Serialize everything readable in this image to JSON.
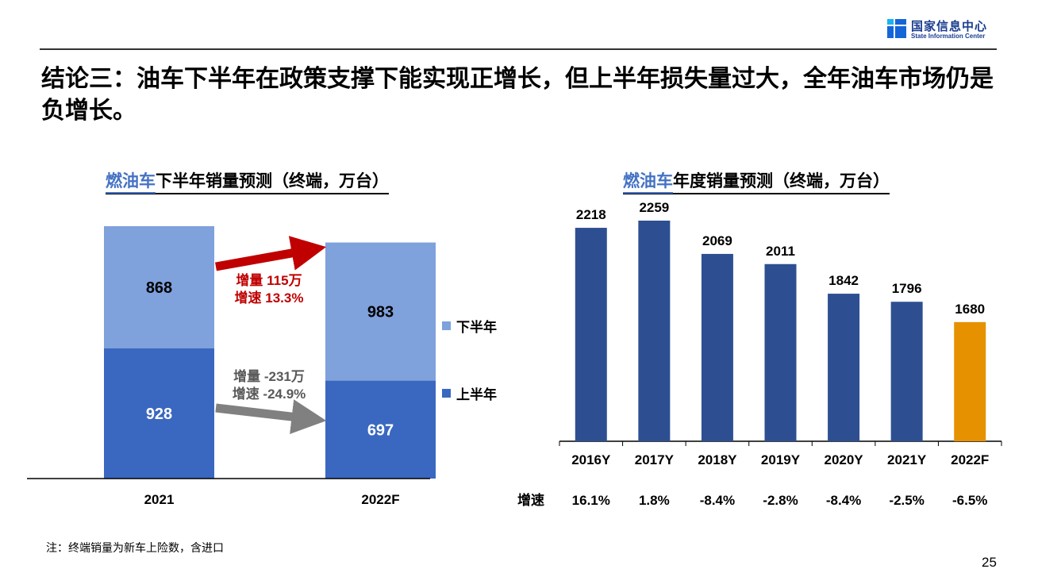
{
  "logo": {
    "cn": "国家信息中心",
    "en": "State Information Center",
    "icon": "state-information-center-logo-icon"
  },
  "headline": "结论三：油车下半年在政策支撑下能实现正增长，但上半年损失量过大，全年油车市场仍是负增长。",
  "colors": {
    "h1": "#3a68c0",
    "h2": "#7fa1dc",
    "annual_bar": "#2d4f92",
    "forecast_bar": "#e69100",
    "up_arrow": "#c00000",
    "down_arrow": "#808080",
    "title_accent": "#4472c4"
  },
  "chart_data": [
    {
      "type": "bar",
      "stacked": true,
      "title_highlight": "燃油车",
      "title_rest": "下半年销量预测（终端，万台）",
      "categories": [
        "2021",
        "2022F"
      ],
      "series": [
        {
          "name": "上半年",
          "values": [
            928,
            697
          ]
        },
        {
          "name": "下半年",
          "values": [
            868,
            983
          ]
        }
      ],
      "legend": {
        "position": "right",
        "items": [
          "下半年",
          "上半年"
        ]
      },
      "annotations": [
        {
          "series": "下半年",
          "lines": [
            "增量 115万",
            "增速 13.3%"
          ],
          "color": "#c00000",
          "direction": "up"
        },
        {
          "series": "上半年",
          "lines": [
            "增量 -231万",
            "增速 -24.9%"
          ],
          "color": "#595959",
          "direction": "down"
        }
      ],
      "ylim": [
        0,
        1796
      ],
      "grid": false
    },
    {
      "type": "bar",
      "title_highlight": "燃油车",
      "title_rest": "年度销量预测（终端，万台）",
      "categories": [
        "2016Y",
        "2017Y",
        "2018Y",
        "2019Y",
        "2020Y",
        "2021Y",
        "2022F"
      ],
      "values": [
        2218,
        2259,
        2069,
        2011,
        1842,
        1796,
        1680
      ],
      "forecast_index": 6,
      "growth_label": "增速",
      "growth": [
        "16.1%",
        "1.8%",
        "-8.4%",
        "-2.8%",
        "-8.4%",
        "-2.5%",
        "-6.5%"
      ],
      "ylim": [
        1000,
        2300
      ],
      "grid": false
    }
  ],
  "note": "注：终端销量为新车上险数，含进口",
  "page_number": "25"
}
